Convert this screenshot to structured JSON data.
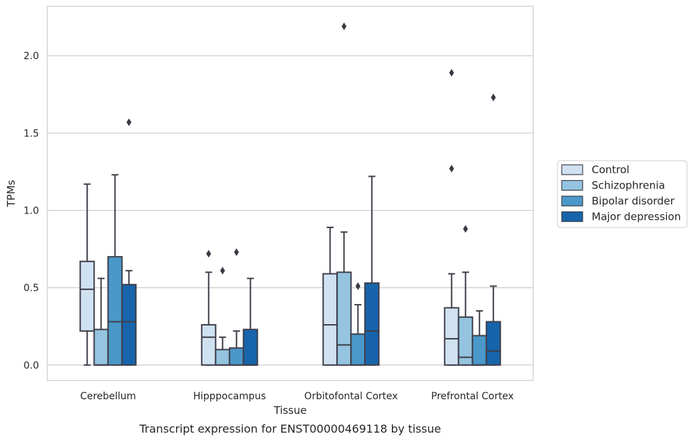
{
  "chart_data": {
    "type": "box",
    "title": "",
    "caption": "Transcript expression for ENST00000469118 by tissue",
    "xlabel": "Tissue",
    "ylabel": "TPMs",
    "ylim": [
      -0.1,
      2.32
    ],
    "yticks": [
      0.0,
      0.5,
      1.0,
      1.5,
      2.0
    ],
    "ytick_labels": [
      "0.0",
      "0.5",
      "1.0",
      "1.5",
      "2.0"
    ],
    "grid": "horizontal",
    "legend_position": "right",
    "categories": [
      "Cerebellum",
      "Hipppocampus",
      "Orbitofontal Cortex",
      "Prefrontal Cortex"
    ],
    "series": [
      {
        "name": "Control",
        "color": "#d0e1f2",
        "boxes": [
          {
            "whislo": 0.0,
            "q1": 0.22,
            "med": 0.49,
            "q3": 0.67,
            "whishi": 1.17,
            "fliers": []
          },
          {
            "whislo": 0.0,
            "q1": 0.0,
            "med": 0.18,
            "q3": 0.26,
            "whishi": 0.6,
            "fliers": [
              0.72
            ]
          },
          {
            "whislo": 0.0,
            "q1": 0.0,
            "med": 0.26,
            "q3": 0.59,
            "whishi": 0.89,
            "fliers": []
          },
          {
            "whislo": 0.0,
            "q1": 0.0,
            "med": 0.17,
            "q3": 0.37,
            "whishi": 0.59,
            "fliers": [
              1.27,
              1.89
            ]
          }
        ]
      },
      {
        "name": "Schizophrenia",
        "color": "#94c4df",
        "boxes": [
          {
            "whislo": 0.0,
            "q1": 0.0,
            "med": 0.0,
            "q3": 0.23,
            "whishi": 0.56,
            "fliers": []
          },
          {
            "whislo": 0.0,
            "q1": 0.0,
            "med": 0.0,
            "q3": 0.1,
            "whishi": 0.18,
            "fliers": [
              0.61
            ]
          },
          {
            "whislo": 0.0,
            "q1": 0.0,
            "med": 0.13,
            "q3": 0.6,
            "whishi": 0.86,
            "fliers": [
              2.19
            ]
          },
          {
            "whislo": 0.0,
            "q1": 0.0,
            "med": 0.05,
            "q3": 0.31,
            "whishi": 0.6,
            "fliers": [
              0.88
            ]
          }
        ]
      },
      {
        "name": "Bipolar disorder",
        "color": "#4a98c9",
        "boxes": [
          {
            "whislo": 0.0,
            "q1": 0.0,
            "med": 0.28,
            "q3": 0.7,
            "whishi": 1.23,
            "fliers": []
          },
          {
            "whislo": 0.0,
            "q1": 0.0,
            "med": 0.0,
            "q3": 0.11,
            "whishi": 0.22,
            "fliers": [
              0.73
            ]
          },
          {
            "whislo": 0.0,
            "q1": 0.0,
            "med": 0.0,
            "q3": 0.2,
            "whishi": 0.39,
            "fliers": [
              0.51
            ]
          },
          {
            "whislo": 0.0,
            "q1": 0.0,
            "med": 0.0,
            "q3": 0.19,
            "whishi": 0.35,
            "fliers": []
          }
        ]
      },
      {
        "name": "Major depression",
        "color": "#1764ab",
        "boxes": [
          {
            "whislo": 0.0,
            "q1": 0.0,
            "med": 0.28,
            "q3": 0.52,
            "whishi": 0.61,
            "fliers": [
              1.57
            ]
          },
          {
            "whislo": 0.0,
            "q1": 0.0,
            "med": 0.0,
            "q3": 0.23,
            "whishi": 0.56,
            "fliers": []
          },
          {
            "whislo": 0.0,
            "q1": 0.0,
            "med": 0.22,
            "q3": 0.53,
            "whishi": 1.22,
            "fliers": []
          },
          {
            "whislo": 0.0,
            "q1": 0.0,
            "med": 0.09,
            "q3": 0.28,
            "whishi": 0.51,
            "fliers": [
              1.73
            ]
          }
        ]
      }
    ]
  },
  "colors": {
    "box_edge": "#3f3f4a",
    "grid": "#cccccc",
    "frame": "#cccccc",
    "flier": "#3a3a44"
  }
}
